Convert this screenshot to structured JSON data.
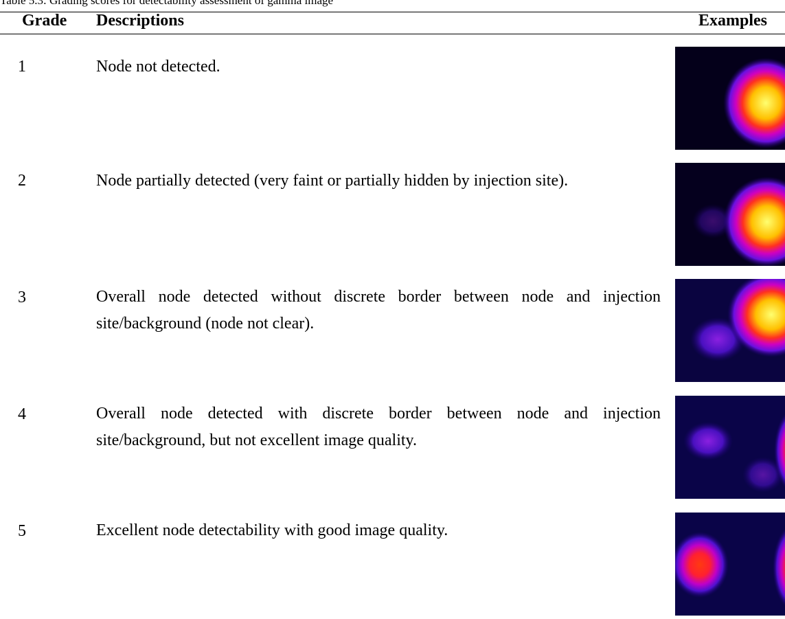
{
  "caption": "Table 5.3: Grading scores for detectability assessment of gamma image",
  "table": {
    "header": [
      "Grade",
      "Descriptions",
      "Examples"
    ],
    "rows": [
      [
        1,
        "Node not detected."
      ],
      [
        2,
        "Node partially detected (very faint or partially hidden by injection site)."
      ],
      [
        3,
        "Overall node detected without discrete border between node and injection site/background (node not clear)."
      ],
      [
        4,
        "Overall node detected with discrete border between node and injection site/background, but not excellent image quality."
      ],
      [
        5,
        "Excellent node detectability with good image quality."
      ]
    ]
  }
}
